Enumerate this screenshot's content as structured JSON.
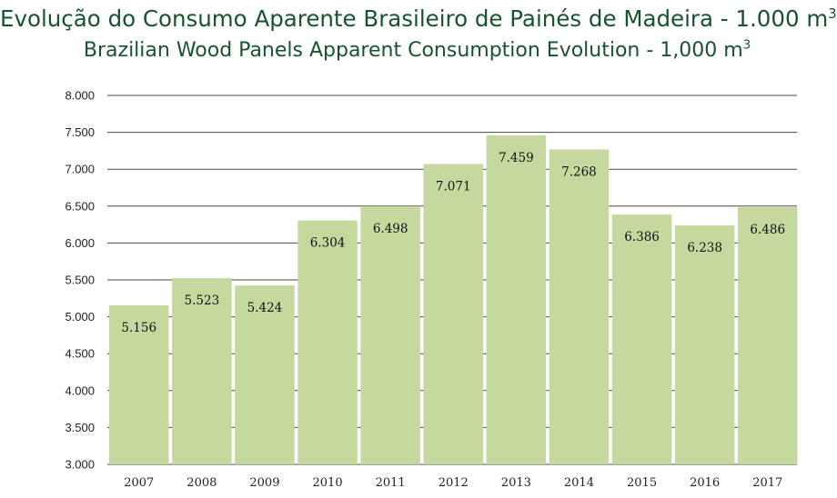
{
  "header": {
    "title": "Evolução do Consumo Aparente Brasileiro de Painés de Madeira - 1.000 m",
    "title_sup": "3",
    "subtitle": "Brazilian Wood Panels Apparent Consumption Evolution - 1,000 m",
    "subtitle_sup": "3"
  },
  "colors": {
    "bar": "#c5d99e",
    "grid": "#4a4a3a",
    "title": "#17532f"
  },
  "chart_data": {
    "type": "bar",
    "title": "Evolução do Consumo Aparente Brasileiro de Painés de Madeira - 1.000 m3",
    "subtitle": "Brazilian Wood Panels Apparent Consumption Evolution - 1,000 m3",
    "categories": [
      "2007",
      "2008",
      "2009",
      "2010",
      "2011",
      "2012",
      "2013",
      "2014",
      "2015",
      "2016",
      "2017"
    ],
    "values": [
      5156,
      5523,
      5424,
      6304,
      6498,
      7071,
      7459,
      7268,
      6386,
      6238,
      6486
    ],
    "value_labels": [
      "5.156",
      "5.523",
      "5.424",
      "6.304",
      "6.498",
      "7.071",
      "7.459",
      "7.268",
      "6.386",
      "6.238",
      "6.486"
    ],
    "yticks": [
      3000,
      3500,
      4000,
      4500,
      5000,
      5500,
      6000,
      6500,
      7000,
      7500,
      8000
    ],
    "ytick_labels": [
      "3.000",
      "3.500",
      "4.000",
      "4.500",
      "5.000",
      "5.500",
      "6.000",
      "6.500",
      "7.000",
      "7.500",
      "8.000"
    ],
    "ylim": [
      3000,
      8000
    ],
    "grid": true,
    "legend": "none",
    "xlabel": "",
    "ylabel": ""
  }
}
